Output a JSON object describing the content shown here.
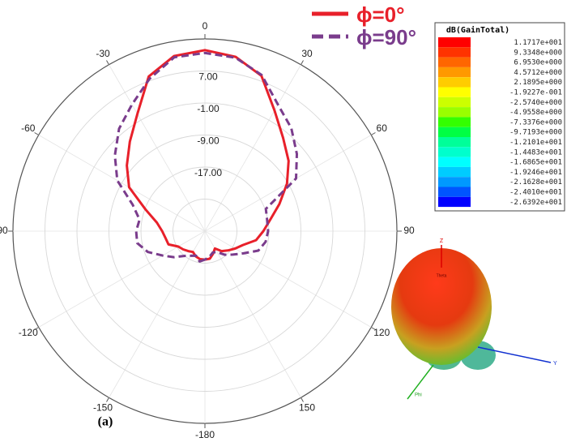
{
  "chart_data": {
    "type": "polar",
    "x": [
      -180,
      -170,
      -160,
      -150,
      -140,
      -130,
      -120,
      -110,
      -100,
      -90,
      -80,
      -70,
      -60,
      -50,
      -40,
      -30,
      -20,
      -10,
      0,
      10,
      20,
      30,
      40,
      50,
      60,
      70,
      80,
      90,
      100,
      110,
      120,
      130,
      140,
      150,
      160,
      170,
      180
    ],
    "series": [
      {
        "name": "ϕ=0°",
        "color": "#e8202a",
        "dash": false,
        "values": [
          -25.9,
          -25.9,
          -26.3,
          -27,
          -26.5,
          -25.9,
          -25.3,
          -23.3,
          -23,
          -22.3,
          -20.8,
          -17.2,
          -11.1,
          -7.5,
          -3.8,
          0.8,
          8.1,
          11.4,
          12.2,
          11.2,
          8.3,
          1.8,
          -2.6,
          -5.7,
          -9.3,
          -13.2,
          -16.4,
          -18.4,
          -20,
          -22.9,
          -24.3,
          -25.5,
          -26.5,
          -28,
          -27,
          -26,
          -25.9
        ]
      },
      {
        "name": "ϕ=90°",
        "color": "#7a3c8c",
        "dash": true,
        "values": [
          -25.9,
          -25.3,
          -26.5,
          -25.9,
          -24.9,
          -22.9,
          -20.8,
          -17.8,
          -15.8,
          -15.8,
          -16.4,
          -13.8,
          -7.7,
          -3.6,
          0.4,
          3.5,
          7.5,
          11.1,
          11.5,
          11,
          8.5,
          3.5,
          0.6,
          -3,
          -6.7,
          -16.8,
          -17.2,
          -17.2,
          -17.6,
          -18.8,
          -21.9,
          -23.9,
          -25.3,
          -27,
          -27.3,
          -26.5,
          -25.9
        ]
      }
    ],
    "rlim": [
      -33,
      15
    ],
    "rticks": [
      {
        "value": 7,
        "label": "7.00"
      },
      {
        "value": -1,
        "label": "-1.00"
      },
      {
        "value": -9,
        "label": "-9.00"
      },
      {
        "value": -17,
        "label": "-17.00"
      },
      {
        "value": -25,
        "label": null
      }
    ],
    "thetaticks": [
      0,
      30,
      60,
      90,
      120,
      150,
      -180,
      -150,
      -120,
      -90,
      -60,
      -30
    ],
    "grid": true
  },
  "colorbar": {
    "title": "dB(GainTotal)",
    "labels": [
      "1.1717e+001",
      "9.3348e+000",
      "6.9530e+000",
      "4.5712e+000",
      "2.1895e+000",
      "-1.9227e-001",
      "-2.5740e+000",
      "-4.9558e+000",
      "-7.3376e+000",
      "-9.7193e+000",
      "-1.2101e+001",
      "-1.4483e+001",
      "-1.6865e+001",
      "-1.9246e+001",
      "-2.1628e+001",
      "-2.4010e+001",
      "-2.6392e+001"
    ],
    "colors": [
      "#ff0000",
      "#ff3300",
      "#ff6600",
      "#ff9900",
      "#ffcc00",
      "#ffff00",
      "#ccff00",
      "#99ff00",
      "#33ff00",
      "#00ff44",
      "#00ff99",
      "#00ffcc",
      "#00ffff",
      "#00ccff",
      "#0099ff",
      "#0055ff",
      "#0000ff"
    ]
  },
  "pattern3d": {
    "z": "Z",
    "y": "Y",
    "phi": "Phi",
    "theta": "Theta"
  },
  "caption": "(a)"
}
